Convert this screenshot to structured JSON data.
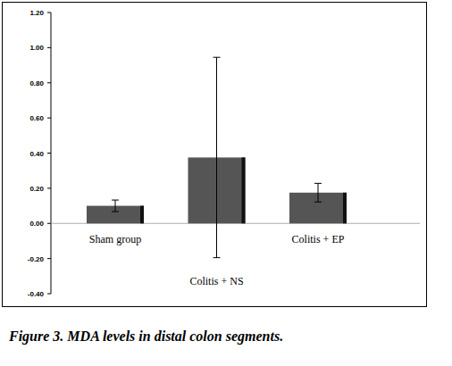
{
  "chart_data": {
    "type": "bar",
    "title": "Figure 3. MDA levels in distal colon segments.",
    "categories": [
      "Sham group",
      "Colitis + NS",
      "Colitis + EP"
    ],
    "values": [
      0.1,
      0.375,
      0.175
    ],
    "errors": [
      0.033,
      0.57,
      0.053
    ],
    "color": "#555555",
    "ylim": [
      -0.4,
      1.2
    ],
    "yticks": [
      {
        "value": -0.4,
        "label": "-0.40"
      },
      {
        "value": -0.2,
        "label": "-0.20"
      },
      {
        "value": 0,
        "label": "0.00"
      },
      {
        "value": 0.2,
        "label": "0.20"
      },
      {
        "value": 0.4,
        "label": "0.40"
      },
      {
        "value": 0.6,
        "label": "0.60"
      },
      {
        "value": 0.8,
        "label": "0.80"
      },
      {
        "value": 1.0,
        "label": "1.00"
      },
      {
        "value": 1.2,
        "label": "1.20"
      }
    ],
    "grid": false
  }
}
